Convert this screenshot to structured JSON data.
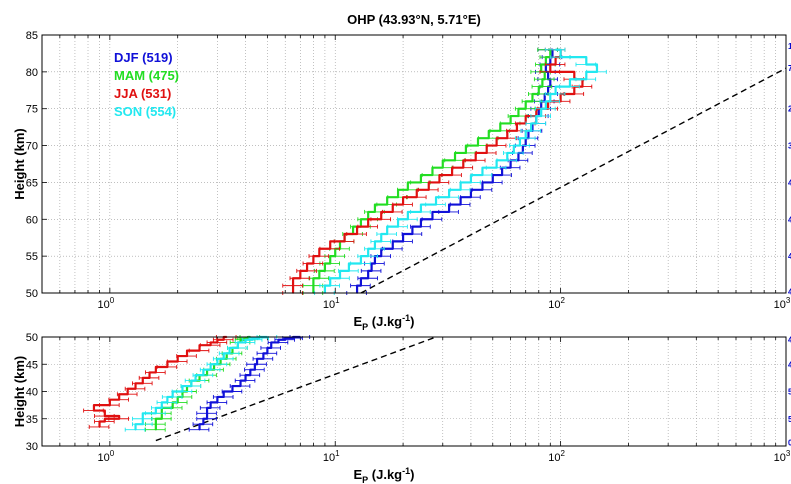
{
  "figure": {
    "title": "OHP (43.93°N, 5.71°E)",
    "colors": {
      "DJF": "#1010d8",
      "MAM": "#22dd22",
      "JJA": "#e01010",
      "SON": "#22e8f0",
      "ref": "#000000",
      "grid": "#9a9a9a",
      "right_labels": "#0000cc"
    }
  },
  "chart_data": [
    {
      "name": "upper",
      "type": "line",
      "xscale": "log",
      "xlim": [
        0.5,
        1000
      ],
      "ylim": [
        50,
        85
      ],
      "grid": true,
      "xlabel_base": "E",
      "xlabel_sub": "P",
      "xlabel_unit": " (J.kg",
      "xlabel_sup": "-1",
      "xlabel_end": ")",
      "ylabel": "Height (km)",
      "yticks": [
        50,
        55,
        60,
        65,
        70,
        75,
        80,
        85
      ],
      "xtick_labels": [
        {
          "value": 1,
          "base": "10",
          "exp": "0"
        },
        {
          "value": 10,
          "base": "10",
          "exp": "1"
        },
        {
          "value": 100,
          "base": "10",
          "exp": "2"
        },
        {
          "value": 1000,
          "base": "10",
          "exp": "3"
        }
      ],
      "legend": {
        "placement": "top-left",
        "entries": [
          {
            "label": "DJF (519)",
            "series": "DJF"
          },
          {
            "label": "MAM (475)",
            "series": "MAM"
          },
          {
            "label": "JJA (531)",
            "series": "JJA"
          },
          {
            "label": "SON (554)",
            "series": "SON"
          }
        ]
      },
      "right_labels": [
        {
          "y": 83.5,
          "text": "1"
        },
        {
          "y": 80.5,
          "text": "7"
        },
        {
          "y": 75,
          "text": "2"
        },
        {
          "y": 70,
          "text": "3"
        },
        {
          "y": 65,
          "text": "4"
        },
        {
          "y": 60,
          "text": "4"
        },
        {
          "y": 55,
          "text": "4"
        },
        {
          "y": 50.2,
          "text": "4"
        }
      ],
      "reference_line": {
        "x": [
          13,
          1000
        ],
        "y": [
          50,
          80.5
        ]
      },
      "series": [
        {
          "name": "DJF",
          "x": [
            12.5,
            13,
            14,
            14.5,
            15,
            16,
            18,
            20,
            22,
            24,
            27,
            32,
            36,
            40,
            45,
            50,
            55,
            60,
            65,
            68,
            70,
            72,
            75,
            78,
            80,
            82,
            85,
            88,
            90,
            88,
            86,
            90,
            92,
            88
          ],
          "y": [
            50,
            51,
            52,
            53,
            54,
            55,
            56,
            57,
            58,
            59,
            60,
            61,
            62,
            63,
            64,
            65,
            66,
            67,
            68,
            69,
            70,
            71,
            72,
            73,
            74,
            75,
            76,
            77,
            78,
            79,
            80,
            81,
            82,
            83
          ]
        },
        {
          "name": "MAM",
          "x": [
            8,
            8,
            8.5,
            9,
            9.5,
            10,
            10.5,
            11,
            12,
            13,
            14,
            15,
            17,
            19,
            21,
            24,
            27,
            30,
            34,
            38,
            43,
            48,
            54,
            60,
            65,
            70,
            75,
            80,
            83,
            85,
            82,
            86,
            90,
            88
          ],
          "y": [
            50,
            51,
            52,
            53,
            54,
            55,
            56,
            57,
            58,
            59,
            60,
            61,
            62,
            63,
            64,
            65,
            66,
            67,
            68,
            69,
            70,
            71,
            72,
            73,
            74,
            75,
            76,
            77,
            78,
            79,
            80,
            81,
            82,
            83
          ]
        },
        {
          "name": "JJA",
          "x": [
            6.5,
            6.5,
            7,
            7.5,
            8,
            8.5,
            9.5,
            11,
            12.5,
            14,
            16,
            18,
            20,
            23,
            26,
            29,
            33,
            37,
            42,
            47,
            52,
            58,
            64,
            70,
            78,
            88,
            100,
            115,
            125,
            115,
            90,
            95,
            100,
            95
          ],
          "y": [
            50,
            51,
            52,
            53,
            54,
            55,
            56,
            57,
            58,
            59,
            60,
            61,
            62,
            63,
            64,
            65,
            66,
            67,
            68,
            69,
            70,
            71,
            72,
            73,
            74,
            75,
            76,
            77,
            78,
            79,
            80,
            81,
            82,
            83
          ]
        },
        {
          "name": "SON",
          "x": [
            9,
            9.5,
            10.5,
            11.5,
            13,
            14,
            15,
            16,
            17,
            19,
            21,
            24,
            28,
            32,
            36,
            40,
            45,
            52,
            58,
            62,
            66,
            70,
            74,
            78,
            82,
            86,
            90,
            95,
            110,
            130,
            145,
            130,
            100,
            95
          ],
          "y": [
            50,
            51,
            52,
            53,
            54,
            55,
            56,
            57,
            58,
            59,
            60,
            61,
            62,
            63,
            64,
            65,
            66,
            67,
            68,
            69,
            70,
            71,
            72,
            73,
            74,
            75,
            76,
            77,
            78,
            79,
            80,
            81,
            82,
            83
          ]
        }
      ]
    },
    {
      "name": "lower",
      "type": "line",
      "xscale": "log",
      "xlim": [
        0.5,
        1000
      ],
      "ylim": [
        30,
        50
      ],
      "grid": true,
      "xlabel_base": "E",
      "xlabel_sub": "P",
      "xlabel_unit": " (J.kg",
      "xlabel_sup": "-1",
      "xlabel_end": ")",
      "ylabel": "Height (km)",
      "yticks": [
        30,
        35,
        40,
        45,
        50
      ],
      "xtick_labels": [
        {
          "value": 1,
          "base": "10",
          "exp": "0"
        },
        {
          "value": 10,
          "base": "10",
          "exp": "1"
        },
        {
          "value": 100,
          "base": "10",
          "exp": "2"
        },
        {
          "value": 1000,
          "base": "10",
          "exp": "3"
        }
      ],
      "right_labels": [
        {
          "y": 49.5,
          "text": "4"
        },
        {
          "y": 45,
          "text": "4"
        },
        {
          "y": 40,
          "text": "5"
        },
        {
          "y": 35,
          "text": "5"
        },
        {
          "y": 30.6,
          "text": "0"
        }
      ],
      "reference_line": {
        "x": [
          1.6,
          28
        ],
        "y": [
          31,
          50
        ]
      },
      "series": [
        {
          "name": "DJF",
          "x": [
            2.5,
            2.6,
            2.7,
            2.7,
            2.8,
            3,
            3.2,
            3.5,
            3.8,
            4,
            4.2,
            4.4,
            4.5,
            4.8,
            5,
            5.2,
            5.6,
            6,
            6.5,
            7
          ],
          "y": [
            33,
            34,
            35,
            36,
            37,
            38,
            39,
            40,
            41,
            42,
            43,
            44,
            45,
            46,
            47,
            48,
            49,
            49.5,
            49.8,
            50
          ]
        },
        {
          "name": "MAM",
          "x": [
            1.6,
            1.6,
            1.7,
            1.7,
            1.9,
            2,
            2.1,
            2.2,
            2.3,
            2.5,
            2.7,
            2.9,
            3.1,
            3.3,
            3.5,
            3.7,
            3.8,
            4,
            4.1,
            4.2
          ],
          "y": [
            33,
            34,
            35,
            36,
            37,
            38,
            39,
            40,
            41,
            42,
            43,
            44,
            45,
            46,
            47,
            48,
            49,
            49.5,
            49.8,
            50
          ]
        },
        {
          "name": "JJA",
          "x": [
            0.9,
            0.95,
            1.1,
            0.95,
            0.85,
            1,
            1.1,
            1.2,
            1.3,
            1.4,
            1.5,
            1.6,
            1.8,
            2,
            2.2,
            2.5,
            2.8,
            3,
            3.2,
            3.3
          ],
          "y": [
            33.5,
            34.5,
            35,
            35.5,
            36.5,
            37.5,
            38.5,
            39.5,
            40.5,
            41.5,
            42.5,
            43.5,
            44.5,
            45.5,
            46.5,
            47.5,
            48.5,
            49,
            49.5,
            50
          ]
        },
        {
          "name": "SON",
          "x": [
            1.3,
            1.4,
            1.4,
            1.6,
            1.7,
            1.8,
            1.9,
            2.1,
            2.3,
            2.4,
            2.6,
            2.8,
            3,
            3.2,
            3.4,
            3.7,
            4,
            4.3,
            4.6,
            5
          ],
          "y": [
            33,
            34,
            35,
            36,
            37,
            38,
            39,
            40,
            41,
            42,
            43,
            44,
            45,
            46,
            47,
            48,
            49,
            49.5,
            49.8,
            50
          ]
        }
      ]
    }
  ]
}
